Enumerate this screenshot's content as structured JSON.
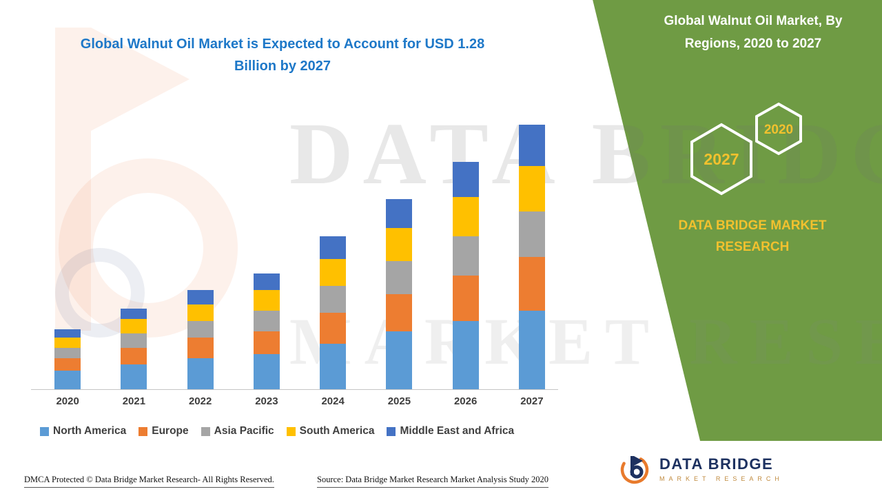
{
  "header": {
    "title_lines": [
      "Global Walnut Oil Market is Expected to Account for USD 1.28",
      "Billion by 2027"
    ]
  },
  "right_panel": {
    "title_lines": [
      "Global Walnut Oil Market, By",
      "Regions, 2020 to 2027"
    ],
    "hexagons": [
      "2027",
      "2020"
    ],
    "brand_lines": [
      "DATA BRIDGE MARKET",
      "RESEARCH"
    ],
    "panel_color": "#6F9B44",
    "accent_color": "#F2C12E"
  },
  "chart_data": {
    "type": "bar",
    "stacked": true,
    "title": "Global Walnut Oil Market is Expected to Account for USD 1.28 Billion by 2027",
    "unit": "USD Billion",
    "categories": [
      "2020",
      "2021",
      "2022",
      "2023",
      "2024",
      "2025",
      "2026",
      "2027"
    ],
    "series": [
      {
        "name": "North America",
        "color": "#5B9BD5",
        "values": [
          0.09,
          0.12,
          0.15,
          0.17,
          0.22,
          0.28,
          0.33,
          0.38
        ]
      },
      {
        "name": "Europe",
        "color": "#ED7D31",
        "values": [
          0.06,
          0.08,
          0.1,
          0.11,
          0.15,
          0.18,
          0.22,
          0.26
        ]
      },
      {
        "name": "Asia Pacific",
        "color": "#A5A5A5",
        "values": [
          0.05,
          0.07,
          0.08,
          0.1,
          0.13,
          0.16,
          0.19,
          0.22
        ]
      },
      {
        "name": "South America",
        "color": "#FFC000",
        "values": [
          0.05,
          0.07,
          0.08,
          0.1,
          0.13,
          0.16,
          0.19,
          0.22
        ]
      },
      {
        "name": "Middle East and Africa",
        "color": "#4472C4",
        "values": [
          0.04,
          0.05,
          0.07,
          0.08,
          0.11,
          0.14,
          0.17,
          0.2
        ]
      }
    ],
    "totals": [
      0.29,
      0.39,
      0.48,
      0.56,
      0.74,
      0.92,
      1.1,
      1.28
    ],
    "ylim": [
      0,
      1.4
    ],
    "grid": false,
    "legend_position": "bottom"
  },
  "watermark": {
    "line1": "DATA BRIDGE",
    "line2": "MARKET RESEARCH"
  },
  "footer": {
    "dmca": "DMCA Protected © Data Bridge Market Research- All Rights Reserved.",
    "source": "Source: Data Bridge Market Research Market Analysis Study 2020"
  },
  "logo": {
    "name": "DATA BRIDGE",
    "tagline": "MARKET RESEARCH"
  }
}
